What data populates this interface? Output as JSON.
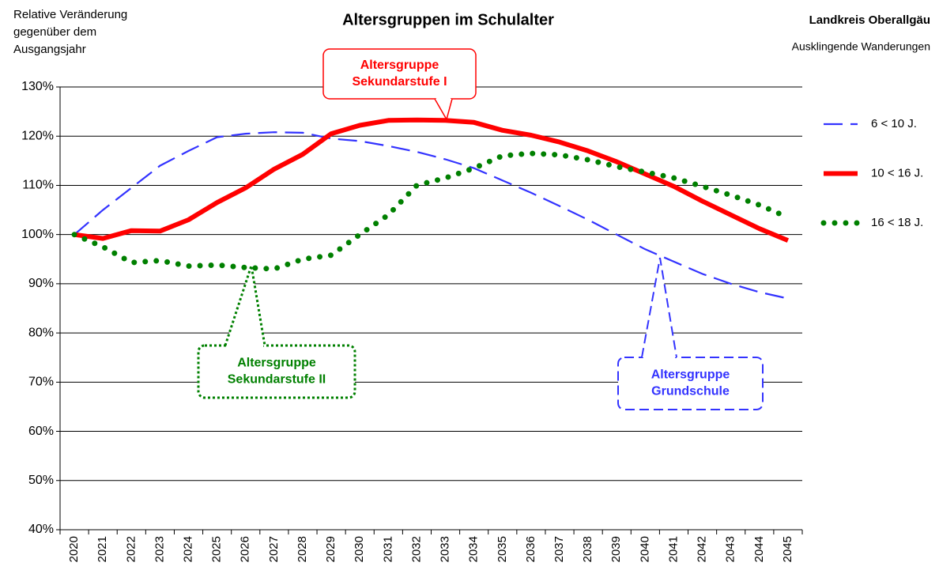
{
  "chart_data": {
    "type": "line",
    "title": "Altersgruppen im Schulalter",
    "y_label": [
      "Relative Veränderung",
      "gegenüber dem",
      "Ausgangsjahr"
    ],
    "region": "Landkreis Oberallgäu",
    "scenario": "Ausklingende Wanderungen",
    "categories": [
      "2020",
      "2021",
      "2022",
      "2023",
      "2024",
      "2025",
      "2026",
      "2027",
      "2028",
      "2029",
      "2030",
      "2031",
      "2032",
      "2033",
      "2034",
      "2035",
      "2036",
      "2037",
      "2038",
      "2039",
      "2040",
      "2041",
      "2042",
      "2043",
      "2044",
      "2045"
    ],
    "series": [
      {
        "name": "6 < 10 J.",
        "color": "#3333ff",
        "style": "dashed",
        "values": [
          100,
          105,
          109.5,
          114,
          117,
          119.8,
          120.5,
          120.8,
          120.7,
          119.5,
          119,
          118,
          116.8,
          115.3,
          113.5,
          111,
          108.5,
          105.8,
          103,
          100,
          97,
          94.5,
          92,
          90,
          88.3,
          87
        ]
      },
      {
        "name": "10 < 16 J.",
        "color": "#ff0000",
        "style": "solid",
        "values": [
          100,
          99.2,
          100.8,
          100.7,
          103,
          106.5,
          109.5,
          113.3,
          116.3,
          120.5,
          122.2,
          123.2,
          123.3,
          123.2,
          122.8,
          121.2,
          120.2,
          118.8,
          117,
          114.8,
          112.3,
          109.8,
          106.8,
          104,
          101.2,
          98.8
        ]
      },
      {
        "name": "16 < 18 J.",
        "color": "#008000",
        "style": "dotted",
        "values": [
          100,
          97.5,
          94.3,
          94.7,
          93.6,
          93.8,
          93.3,
          93,
          95,
          95.8,
          100,
          104,
          110,
          111.5,
          113.5,
          116,
          116.5,
          116.2,
          115.2,
          113.8,
          112.7,
          111.5,
          109.8,
          108,
          106,
          103.5
        ]
      }
    ],
    "annotations": [
      {
        "lines": [
          "Altersgruppe",
          "Sekundarstufe I"
        ],
        "color": "#ff0000",
        "style": "solid"
      },
      {
        "lines": [
          "Altersgruppe",
          "Sekundarstufe II"
        ],
        "color": "#008000",
        "style": "dotted"
      },
      {
        "lines": [
          "Altersgruppe",
          "Grundschule"
        ],
        "color": "#3333ff",
        "style": "dashed"
      }
    ],
    "ylim": [
      40,
      130
    ],
    "yticks": [
      {
        "value": 40,
        "label": "40%"
      },
      {
        "value": 50,
        "label": "50%"
      },
      {
        "value": 60,
        "label": "60%"
      },
      {
        "value": 70,
        "label": "70%"
      },
      {
        "value": 80,
        "label": "80%"
      },
      {
        "value": 90,
        "label": "90%"
      },
      {
        "value": 100,
        "label": "100%"
      },
      {
        "value": 110,
        "label": "110%"
      },
      {
        "value": 120,
        "label": "120%"
      },
      {
        "value": 130,
        "label": "130%"
      }
    ],
    "grid": true,
    "legend": "right"
  }
}
